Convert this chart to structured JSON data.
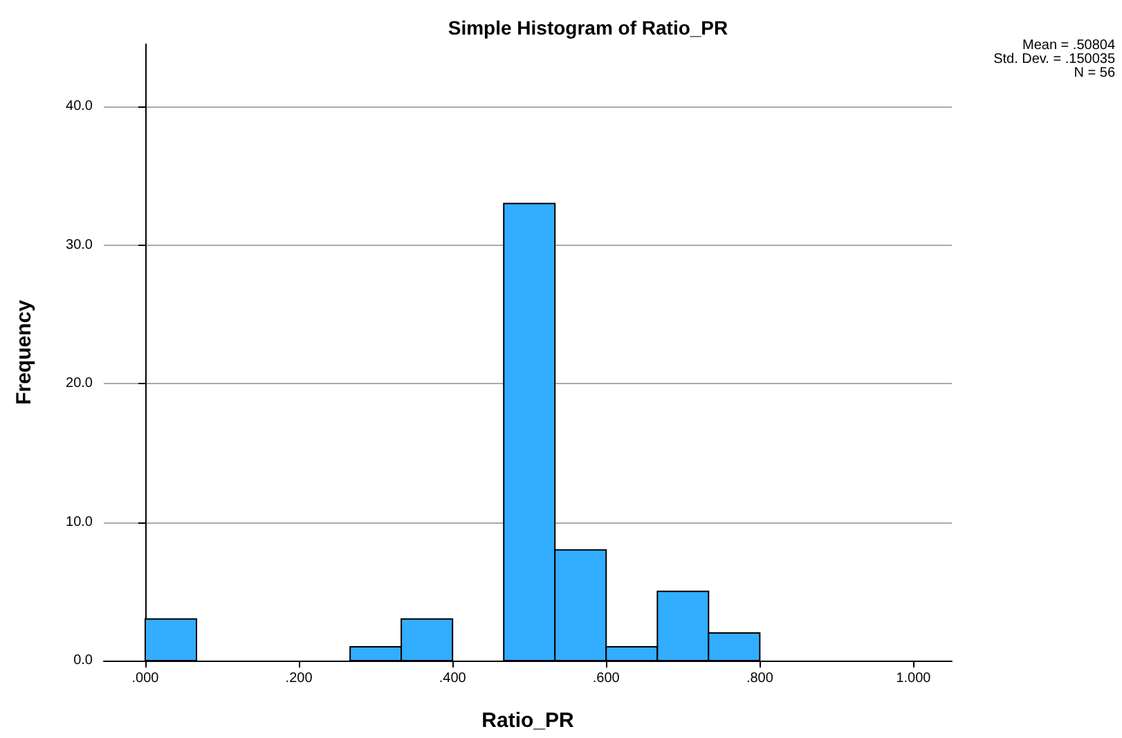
{
  "chart_data": {
    "type": "histogram",
    "title": "Simple Histogram of Ratio_PR",
    "xlabel": "Ratio_PR",
    "ylabel": "Frequency",
    "bins": [
      0,
      0.0667,
      0.1333,
      0.2,
      0.2667,
      0.3333,
      0.4,
      0.4667,
      0.5333,
      0.6,
      0.6667,
      0.7333,
      0.8
    ],
    "values": [
      3,
      0,
      0,
      0,
      1,
      3,
      0,
      33,
      8,
      1,
      5,
      2
    ],
    "color": "#33adff",
    "xlim": [
      -0.054,
      1.05
    ],
    "xticks": [
      {
        "value": 0,
        "label": ".000"
      },
      {
        "value": 0.2,
        "label": ".200"
      },
      {
        "value": 0.4,
        "label": ".400"
      },
      {
        "value": 0.6,
        "label": ".600"
      },
      {
        "value": 0.8,
        "label": ".800"
      },
      {
        "value": 1,
        "label": "1.000"
      }
    ],
    "ylim": [
      0,
      44.5
    ],
    "yticks": [
      {
        "value": 0,
        "label": "0.0"
      },
      {
        "value": 10,
        "label": "10.0"
      },
      {
        "value": 20,
        "label": "20.0"
      },
      {
        "value": 30,
        "label": "30.0"
      },
      {
        "value": 40,
        "label": "40.0"
      }
    ],
    "grid": "y",
    "annotations": [
      "Mean = .50804",
      "Std. Dev. = .150035",
      "N = 56"
    ]
  }
}
